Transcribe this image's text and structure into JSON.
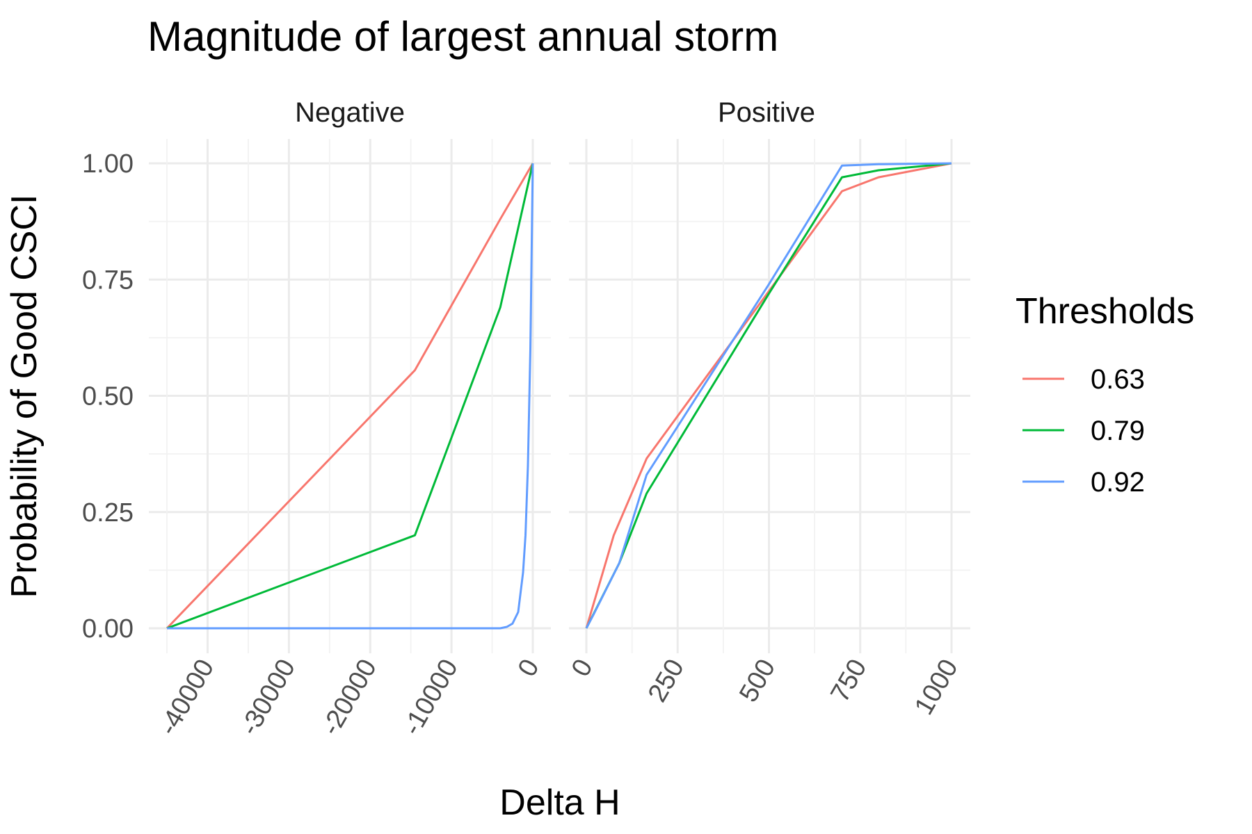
{
  "chart_data": {
    "type": "line",
    "title": "Magnitude of largest annual storm",
    "xlabel": "Delta H",
    "ylabel": "Probability of Good CSCI",
    "legend": {
      "title": "Thresholds",
      "placement": "right"
    },
    "y_ticks": [
      "0.00",
      "0.25",
      "0.50",
      "0.75",
      "1.00"
    ],
    "ylim": [
      0,
      1
    ],
    "grid": true,
    "panels": [
      {
        "label": "Negative",
        "xlim": [
          -45000,
          0
        ],
        "x_ticks": [
          "-40000",
          "-30000",
          "-20000",
          "-10000",
          "0"
        ],
        "x_tick_values": [
          -40000,
          -30000,
          -20000,
          -10000,
          0
        ],
        "series": [
          {
            "name": "0.63",
            "color": "#F8766D",
            "x": [
              -45000,
              -14500,
              -4000,
              0
            ],
            "y": [
              0.0,
              0.555,
              0.88,
              1.0
            ]
          },
          {
            "name": "0.79",
            "color": "#00BA38",
            "x": [
              -45000,
              -14500,
              -4000,
              0
            ],
            "y": [
              0.0,
              0.2,
              0.69,
              1.0
            ]
          },
          {
            "name": "0.92",
            "color": "#619CFF",
            "x": [
              -45000,
              -4000,
              -3200,
              -2500,
              -1800,
              -1200,
              -900,
              -600,
              -300,
              0
            ],
            "y": [
              0.0,
              0.0,
              0.003,
              0.01,
              0.035,
              0.12,
              0.2,
              0.35,
              0.6,
              1.0
            ]
          }
        ]
      },
      {
        "label": "Positive",
        "xlim": [
          0,
          1000
        ],
        "x_ticks": [
          "0",
          "250",
          "500",
          "750",
          "1000"
        ],
        "x_tick_values": [
          0,
          250,
          500,
          750,
          1000
        ],
        "series": [
          {
            "name": "0.63",
            "color": "#F8766D",
            "x": [
              0,
              75,
              165,
              700,
              800,
              1000
            ],
            "y": [
              0.0,
              0.2,
              0.365,
              0.94,
              0.97,
              1.0
            ]
          },
          {
            "name": "0.79",
            "color": "#00BA38",
            "x": [
              0,
              90,
              165,
              500,
              700,
              800,
              1000
            ],
            "y": [
              0.0,
              0.14,
              0.29,
              0.72,
              0.97,
              0.985,
              1.0
            ]
          },
          {
            "name": "0.92",
            "color": "#619CFF",
            "x": [
              0,
              20,
              90,
              165,
              500,
              700,
              800,
              1000
            ],
            "y": [
              0.0,
              0.03,
              0.14,
              0.33,
              0.74,
              0.995,
              0.998,
              1.0
            ]
          }
        ]
      }
    ]
  }
}
